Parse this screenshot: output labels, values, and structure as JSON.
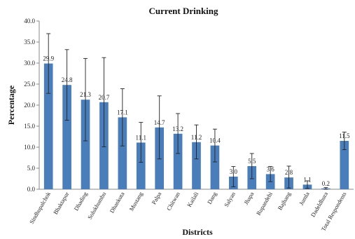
{
  "chart_data": {
    "type": "bar",
    "title": "Current Drinking",
    "xlabel": "Districts",
    "ylabel": "Percentage",
    "ylim": [
      0,
      40
    ],
    "yticks": [
      "0.0",
      "5.0",
      "10.0",
      "15.0",
      "20.0",
      "25.0",
      "30.0",
      "35.0",
      "40.0"
    ],
    "grid": false,
    "bar_color": "#4a7ebb",
    "categories": [
      "Sindhupalchok",
      "Bhaktapur",
      "Dhading",
      "Solukhumbu",
      "Dhankuta",
      "Mustang",
      "Palpa",
      "Chitwan",
      "Kailali",
      "Dang",
      "Salyan",
      "Jhapa",
      "Rupandehi",
      "Bajhang",
      "Jumla",
      "Dadeldhura",
      "Total Respondents"
    ],
    "values": [
      29.9,
      24.8,
      21.3,
      20.7,
      17.1,
      11.1,
      14.7,
      13.2,
      11.2,
      10.4,
      3.0,
      5.5,
      3.6,
      2.8,
      1.1,
      0.2,
      11.5
    ],
    "data_labels": [
      "29.9",
      "24.8",
      "21.3",
      "20.7",
      "17.1",
      "11.1",
      "14.7",
      "13.2",
      "11.2",
      "10.4",
      "3.0",
      "5.5",
      "3.6",
      "2.8",
      "1.1",
      "0.2",
      "11.5"
    ],
    "error_low": [
      22.8,
      16.4,
      11.5,
      10.1,
      10.3,
      6.4,
      7.2,
      8.5,
      7.2,
      6.5,
      0.6,
      2.5,
      1.8,
      0.3,
      0.2,
      0.0,
      9.4
    ],
    "error_high": [
      37.0,
      33.2,
      31.1,
      31.3,
      23.9,
      15.9,
      22.2,
      18.0,
      15.3,
      14.3,
      5.4,
      8.5,
      5.4,
      5.5,
      2.0,
      0.4,
      13.6
    ]
  }
}
